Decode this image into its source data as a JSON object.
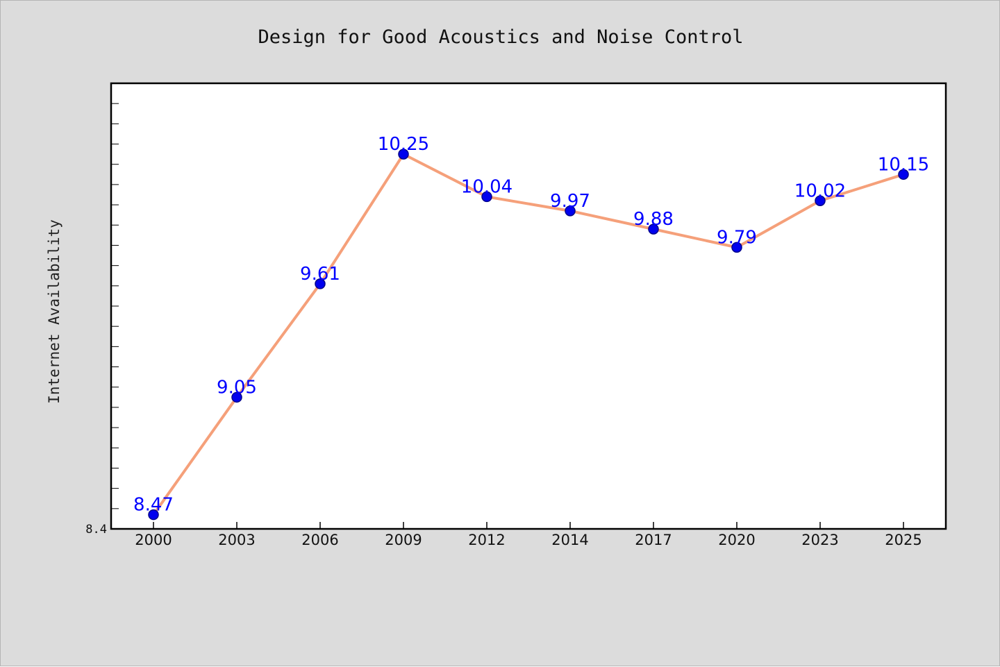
{
  "chart_data": {
    "type": "line",
    "title": "Design for Good Acoustics and Noise Control",
    "xlabel": "",
    "ylabel": "Internet Availability",
    "categories": [
      "2000",
      "2003",
      "2006",
      "2009",
      "2012",
      "2014",
      "2017",
      "2020",
      "2023",
      "2025"
    ],
    "series": [
      {
        "values": [
          8.47,
          9.05,
          9.61,
          10.25,
          10.04,
          9.97,
          9.88,
          9.79,
          10.02,
          10.15
        ]
      }
    ],
    "ylim": [
      8.4,
      10.6
    ],
    "yticks_labeled": [
      "8.4"
    ],
    "minor_tick_step": 0.1,
    "grid": false,
    "legend": "none",
    "colors": {
      "figure_background": "#dcdcdc",
      "plot_background": "#ffffff",
      "line": "#f5a07a",
      "marker_fill": "#0000ee",
      "marker_edge": "#00008b",
      "data_label": "#0000ff",
      "axes_frame": "#000000"
    }
  }
}
